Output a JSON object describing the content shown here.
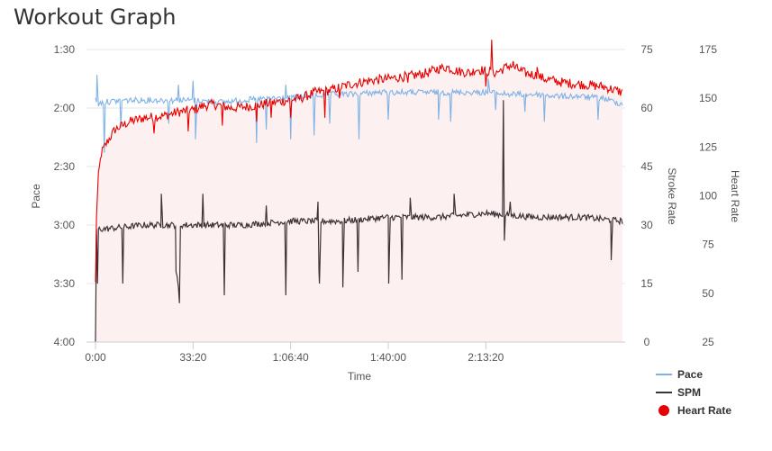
{
  "page_title": "Workout Graph",
  "colors": {
    "pace": "#7fb2e5",
    "spm": "#3d3235",
    "heart_rate": "#e60000",
    "area_fill": "#fdf0f0",
    "grid": "#e6e6e6"
  },
  "legend": {
    "pace": "Pace",
    "spm": "SPM",
    "heart_rate": "Heart Rate"
  },
  "chart_data": {
    "type": "line",
    "title": "Workout Graph",
    "xlabel": "Time",
    "x_unit": "seconds",
    "xlim": [
      0,
      10800
    ],
    "x_ticks": [
      {
        "value": 0,
        "label": "0:00"
      },
      {
        "value": 2000,
        "label": "33:20"
      },
      {
        "value": 4000,
        "label": "1:06:40"
      },
      {
        "value": 6000,
        "label": "1:40:00"
      },
      {
        "value": 8000,
        "label": "2:13:20"
      }
    ],
    "axes": {
      "pace": {
        "label": "Pace",
        "unit": "seconds per 500m",
        "reversed": true,
        "range": [
          90,
          240
        ],
        "ticks": [
          {
            "value": 90,
            "label": "1:30"
          },
          {
            "value": 120,
            "label": "2:00"
          },
          {
            "value": 150,
            "label": "2:30"
          },
          {
            "value": 180,
            "label": "3:00"
          },
          {
            "value": 210,
            "label": "3:30"
          },
          {
            "value": 240,
            "label": "4:00"
          }
        ]
      },
      "stroke_rate": {
        "label": "Stroke Rate",
        "range": [
          0,
          75
        ],
        "ticks": [
          {
            "value": 75,
            "label": "75"
          },
          {
            "value": 60,
            "label": "60"
          },
          {
            "value": 45,
            "label": "45"
          },
          {
            "value": 30,
            "label": "30"
          },
          {
            "value": 15,
            "label": "15"
          },
          {
            "value": 0,
            "label": "0"
          }
        ]
      },
      "heart_rate": {
        "label": "Heart Rate",
        "range": [
          25,
          175
        ],
        "ticks": [
          {
            "value": 175,
            "label": "175"
          },
          {
            "value": 150,
            "label": "150"
          },
          {
            "value": 125,
            "label": "125"
          },
          {
            "value": 100,
            "label": "100"
          },
          {
            "value": 75,
            "label": "75"
          },
          {
            "value": 50,
            "label": "50"
          },
          {
            "value": 25,
            "label": "25"
          }
        ]
      }
    },
    "series": [
      {
        "name": "Pace",
        "axis": "pace",
        "points": [
          [
            0,
            116
          ],
          [
            50,
            118
          ],
          [
            150,
            117
          ],
          [
            600,
            116
          ],
          [
            1500,
            116
          ],
          [
            2000,
            116
          ],
          [
            2600,
            117
          ],
          [
            3000,
            116
          ],
          [
            3600,
            115
          ],
          [
            4000,
            115
          ],
          [
            4400,
            114
          ],
          [
            4800,
            113
          ],
          [
            5200,
            113
          ],
          [
            5800,
            112
          ],
          [
            6400,
            112
          ],
          [
            7000,
            112
          ],
          [
            7600,
            112
          ],
          [
            8000,
            112
          ],
          [
            8500,
            113
          ],
          [
            9000,
            113
          ],
          [
            9500,
            114
          ],
          [
            9900,
            114
          ],
          [
            10400,
            115
          ],
          [
            10800,
            118
          ]
        ],
        "dips": [
          [
            180,
            143
          ],
          [
            520,
            130
          ],
          [
            1500,
            128
          ],
          [
            2050,
            136
          ],
          [
            3300,
            138
          ],
          [
            3500,
            131
          ],
          [
            4000,
            136
          ],
          [
            4480,
            134
          ],
          [
            4800,
            128
          ],
          [
            5400,
            136
          ],
          [
            6000,
            126
          ],
          [
            7030,
            126
          ],
          [
            7280,
            127
          ],
          [
            8200,
            121
          ],
          [
            8800,
            122
          ],
          [
            9200,
            127
          ],
          [
            10300,
            126
          ]
        ],
        "spikes": [
          [
            30,
            103
          ],
          [
            1700,
            108
          ],
          [
            2000,
            106
          ],
          [
            3900,
            108
          ],
          [
            8050,
            105
          ]
        ]
      },
      {
        "name": "SPM",
        "axis": "stroke_rate",
        "points": [
          [
            0,
            28
          ],
          [
            10,
            29
          ],
          [
            200,
            29
          ],
          [
            1000,
            30
          ],
          [
            2000,
            30
          ],
          [
            3000,
            30
          ],
          [
            4000,
            31
          ],
          [
            5000,
            31
          ],
          [
            6000,
            32
          ],
          [
            7000,
            32
          ],
          [
            8000,
            33
          ],
          [
            9000,
            32
          ],
          [
            10000,
            32
          ],
          [
            10800,
            31
          ]
        ],
        "dips": [
          [
            0,
            0
          ],
          [
            40,
            15
          ],
          [
            560,
            15
          ],
          [
            1350,
            11
          ],
          [
            1650,
            18
          ],
          [
            1670,
            17
          ],
          [
            1700,
            14
          ],
          [
            1720,
            10
          ],
          [
            2640,
            12
          ],
          [
            3900,
            12
          ],
          [
            4580,
            18
          ],
          [
            4590,
            15
          ],
          [
            5070,
            14
          ],
          [
            5380,
            18
          ],
          [
            6010,
            15
          ],
          [
            6280,
            16
          ],
          [
            8380,
            26
          ],
          [
            10570,
            21
          ]
        ],
        "spikes": [
          [
            1350,
            38
          ],
          [
            2200,
            38
          ],
          [
            3500,
            35
          ],
          [
            4560,
            36
          ],
          [
            6450,
            37
          ],
          [
            7350,
            38
          ],
          [
            8360,
            62
          ],
          [
            8500,
            36
          ]
        ]
      },
      {
        "name": "Heart Rate",
        "axis": "heart_rate",
        "points": [
          [
            0,
            55
          ],
          [
            20,
            90
          ],
          [
            60,
            110
          ],
          [
            120,
            122
          ],
          [
            250,
            128
          ],
          [
            400,
            134
          ],
          [
            700,
            138
          ],
          [
            1000,
            140
          ],
          [
            1400,
            141
          ],
          [
            1700,
            143
          ],
          [
            2000,
            144
          ],
          [
            2200,
            146
          ],
          [
            2400,
            147
          ],
          [
            2800,
            145
          ],
          [
            3200,
            146
          ],
          [
            3700,
            148
          ],
          [
            4200,
            150
          ],
          [
            4500,
            153
          ],
          [
            4800,
            154
          ],
          [
            5200,
            157
          ],
          [
            5600,
            159
          ],
          [
            6000,
            160
          ],
          [
            6300,
            161
          ],
          [
            6600,
            162
          ],
          [
            6800,
            163
          ],
          [
            7000,
            165
          ],
          [
            7200,
            166
          ],
          [
            7400,
            164
          ],
          [
            7700,
            163
          ],
          [
            7800,
            165
          ],
          [
            8000,
            164
          ],
          [
            8200,
            163
          ],
          [
            8500,
            167
          ],
          [
            8800,
            163
          ],
          [
            9000,
            162
          ],
          [
            9200,
            160
          ],
          [
            9600,
            158
          ],
          [
            10000,
            157
          ],
          [
            10400,
            156
          ],
          [
            10800,
            153
          ]
        ],
        "dips": [
          [
            1200,
            132
          ],
          [
            1900,
            133
          ],
          [
            2600,
            136
          ],
          [
            3300,
            138
          ],
          [
            3600,
            140
          ],
          [
            4000,
            140
          ],
          [
            4700,
            140
          ],
          [
            5000,
            150
          ],
          [
            6400,
            158
          ],
          [
            8000,
            156
          ]
        ],
        "spikes": [
          [
            8120,
            180
          ],
          [
            8560,
            169
          ],
          [
            9050,
            166
          ]
        ]
      }
    ]
  }
}
